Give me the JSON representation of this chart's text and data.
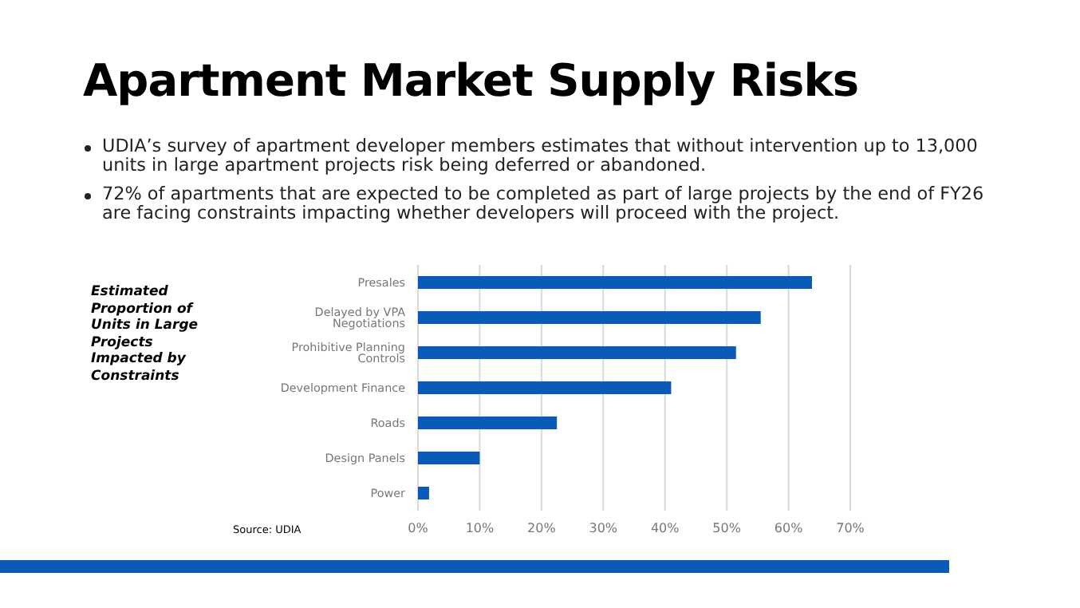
{
  "chart_data": {
    "type": "bar",
    "orientation": "horizontal",
    "title": "Apartment Market Supply Risks",
    "annotations": [
      "UDIA’s survey of apartment developer members estimates that without intervention up to 13,000 units in large apartment projects risk being deferred or abandoned.",
      "72% of apartments that are expected to be completed as part of large projects by the end of FY26 are facing constraints impacting whether developers will proceed with the project.",
      "Estimated Proportion of Units in Large Projects Impacted by Constraints",
      "Source: UDIA"
    ],
    "categories": [
      "Presales",
      "Delayed by VPA Negotiations",
      "Prohibitive Planning Controls",
      "Development Finance",
      "Roads",
      "Design Panels",
      "Power"
    ],
    "values": [
      63.8,
      55.5,
      51.5,
      41,
      22.5,
      10,
      1.8
    ],
    "color": "#0a5bb8",
    "xlim": [
      0,
      70
    ],
    "xticks": [
      {
        "value": 0,
        "label": "0%"
      },
      {
        "value": 10,
        "label": "10%"
      },
      {
        "value": 20,
        "label": "20%"
      },
      {
        "value": 30,
        "label": "30%"
      },
      {
        "value": 40,
        "label": "40%"
      },
      {
        "value": 50,
        "label": "50%"
      },
      {
        "value": 60,
        "label": "60%"
      },
      {
        "value": 70,
        "label": "70%"
      }
    ],
    "grid": "x",
    "legend": false
  }
}
